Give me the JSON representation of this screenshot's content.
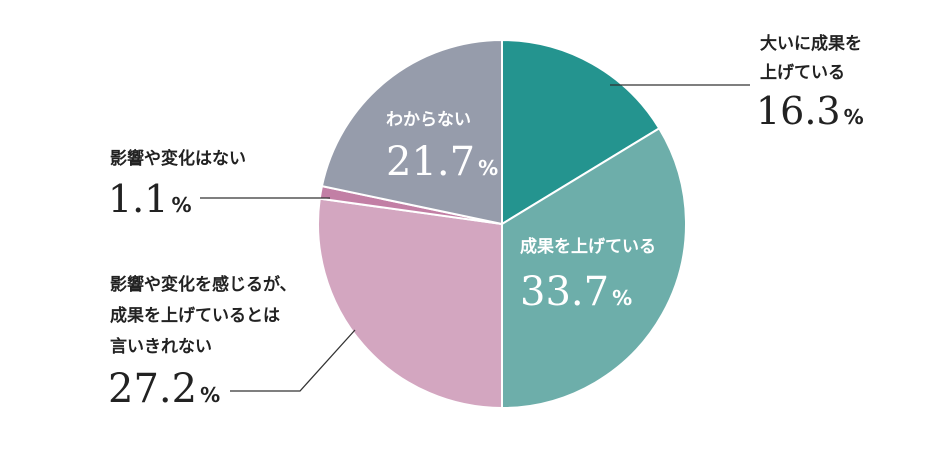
{
  "chart_data": {
    "type": "pie",
    "title": "",
    "start": "top",
    "direction": "clockwise",
    "slices": [
      {
        "label_lines": [
          "大いに成果を",
          "上げている"
        ],
        "value": 16.3,
        "value_text": "16.3",
        "color": "#24948f"
      },
      {
        "label_lines": [
          "成果を上げている"
        ],
        "value": 33.7,
        "value_text": "33.7",
        "color": "#6daeaa"
      },
      {
        "label_lines": [
          "影響や変化を感じるが、",
          "成果を上げているとは",
          "言いきれない"
        ],
        "value": 27.2,
        "value_text": "27.2",
        "color": "#d3a6c0"
      },
      {
        "label_lines": [
          "影響や変化はない"
        ],
        "value": 1.1,
        "value_text": "1.1",
        "color": "#c27fa5"
      },
      {
        "label_lines": [
          "わからない"
        ],
        "value": 21.7,
        "value_text": "21.7",
        "color": "#969cab"
      }
    ],
    "percent_sign": "%"
  }
}
